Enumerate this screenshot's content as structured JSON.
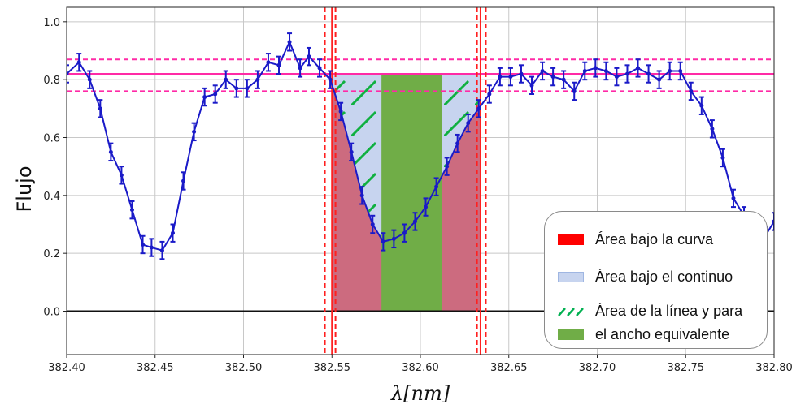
{
  "chart_data": {
    "type": "line",
    "xlabel": "λ[nm]",
    "ylabel": "Flujo",
    "xlim": [
      382.4,
      382.8
    ],
    "ylim": [
      -0.15,
      1.05
    ],
    "xticks": [
      "382.40",
      "382.45",
      "382.50",
      "382.55",
      "382.60",
      "382.65",
      "382.70",
      "382.75",
      "382.80"
    ],
    "yticks": [
      "0.0",
      "0.2",
      "0.4",
      "0.6",
      "0.8",
      "1.0"
    ],
    "grid": true,
    "series": [
      {
        "color": "#1a1ac8",
        "x": [
          382.4,
          382.407,
          382.413,
          382.419,
          382.425,
          382.431,
          382.437,
          382.443,
          382.448,
          382.454,
          382.46,
          382.466,
          382.472,
          382.478,
          382.484,
          382.49,
          382.496,
          382.502,
          382.508,
          382.514,
          382.52,
          382.526,
          382.532,
          382.537,
          382.543,
          382.549,
          382.555,
          382.561,
          382.567,
          382.573,
          382.579,
          382.585,
          382.591,
          382.597,
          382.603,
          382.609,
          382.615,
          382.621,
          382.627,
          382.633,
          382.639,
          382.645,
          382.651,
          382.657,
          382.663,
          382.669,
          382.675,
          382.681,
          382.687,
          382.693,
          382.699,
          382.705,
          382.711,
          382.717,
          382.723,
          382.729,
          382.735,
          382.741,
          382.747,
          382.753,
          382.759,
          382.765,
          382.771,
          382.777,
          382.783,
          382.789,
          382.795,
          382.8
        ],
        "y": [
          0.82,
          0.86,
          0.8,
          0.7,
          0.55,
          0.47,
          0.35,
          0.23,
          0.22,
          0.21,
          0.27,
          0.45,
          0.62,
          0.74,
          0.75,
          0.8,
          0.77,
          0.77,
          0.8,
          0.86,
          0.85,
          0.93,
          0.84,
          0.88,
          0.84,
          0.8,
          0.69,
          0.55,
          0.4,
          0.3,
          0.24,
          0.25,
          0.27,
          0.31,
          0.36,
          0.43,
          0.5,
          0.58,
          0.65,
          0.7,
          0.75,
          0.81,
          0.81,
          0.82,
          0.78,
          0.83,
          0.81,
          0.8,
          0.76,
          0.83,
          0.84,
          0.83,
          0.81,
          0.82,
          0.84,
          0.82,
          0.8,
          0.83,
          0.83,
          0.76,
          0.71,
          0.63,
          0.53,
          0.39,
          0.33,
          0.28,
          0.26,
          0.31
        ],
        "yerr": 0.03
      }
    ],
    "continuum": {
      "level": 0.82,
      "upper": 0.87,
      "lower": 0.76,
      "color": "#ff2aa6"
    },
    "zero_line": 0.0,
    "region_lines": {
      "solid": [
        382.55,
        382.634
      ],
      "dashed": [
        382.546,
        382.552,
        382.632,
        382.637
      ],
      "color": "#ff2020"
    },
    "area_under_continuum": {
      "x": [
        382.55,
        382.634
      ],
      "y": 0.82,
      "color": "#c7d4ef"
    },
    "area_under_curve": {
      "x": [
        382.55,
        382.634
      ],
      "color": "#cc6b7f"
    },
    "equivalent_width": {
      "x": [
        382.578,
        382.612
      ],
      "height": 0.82,
      "color": "#70ad47"
    },
    "legend_position": "lower-right",
    "legend": [
      {
        "label": "Área bajo la curva",
        "color": "#ff0000",
        "style": "solid"
      },
      {
        "label": "Área bajo el continuo",
        "color": "#c7d4ef",
        "style": "solid"
      },
      {
        "label": "Área de la línea y para",
        "color": "#00b050",
        "style": "hatch"
      },
      {
        "label": "el ancho equivalente",
        "color": "#70ad47",
        "style": "solid"
      }
    ]
  }
}
